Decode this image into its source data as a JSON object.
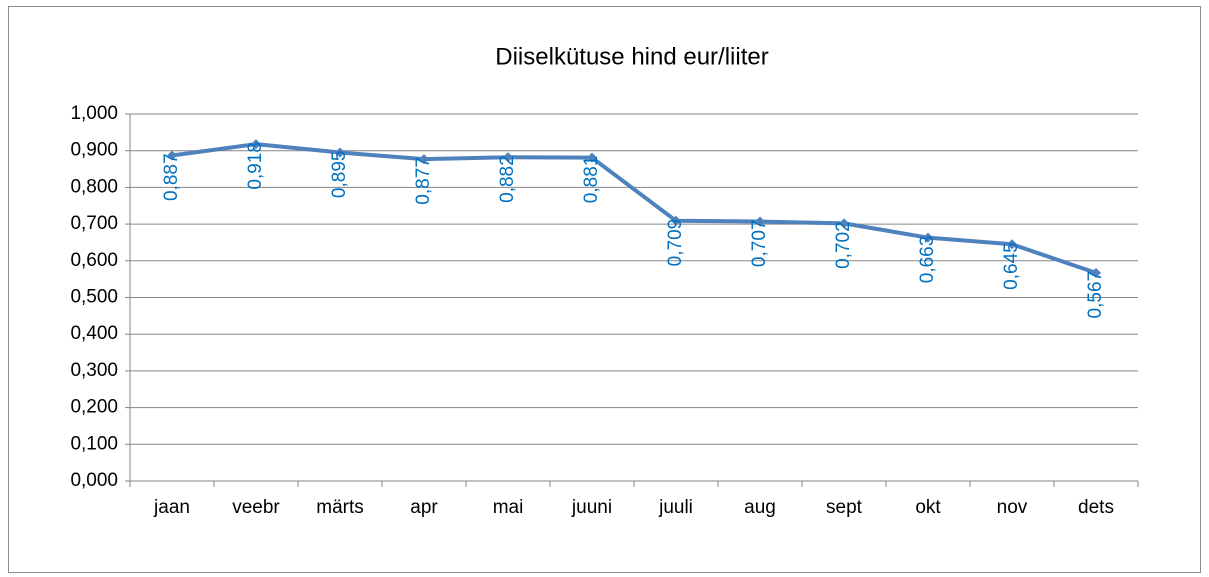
{
  "chart_data": {
    "type": "line",
    "title": "Diiselkütuse hind eur/liiter",
    "categories": [
      "jaan",
      "veebr",
      "märts",
      "apr",
      "mai",
      "juuni",
      "juuli",
      "aug",
      "sept",
      "okt",
      "nov",
      "dets"
    ],
    "values": [
      0.887,
      0.918,
      0.895,
      0.877,
      0.882,
      0.881,
      0.709,
      0.707,
      0.702,
      0.663,
      0.645,
      0.567
    ],
    "value_labels": [
      "0,887",
      "0,918",
      "0,895",
      "0,877",
      "0,882",
      "0,881",
      "0,709",
      "0,707",
      "0,702",
      "0,663",
      "0,645",
      "0,567"
    ],
    "color": "#4f81bd",
    "label_color": "#0070c0",
    "ylim": [
      0,
      1
    ],
    "yticks": [
      {
        "value": 0,
        "label": "0,000"
      },
      {
        "value": 0.1,
        "label": "0,100"
      },
      {
        "value": 0.2,
        "label": "0,200"
      },
      {
        "value": 0.3,
        "label": "0,300"
      },
      {
        "value": 0.4,
        "label": "0,400"
      },
      {
        "value": 0.5,
        "label": "0,500"
      },
      {
        "value": 0.6,
        "label": "0,600"
      },
      {
        "value": 0.7,
        "label": "0,700"
      },
      {
        "value": 0.8,
        "label": "0,800"
      },
      {
        "value": 0.9,
        "label": "0,900"
      },
      {
        "value": 1,
        "label": "1,000"
      }
    ],
    "grid": true
  }
}
